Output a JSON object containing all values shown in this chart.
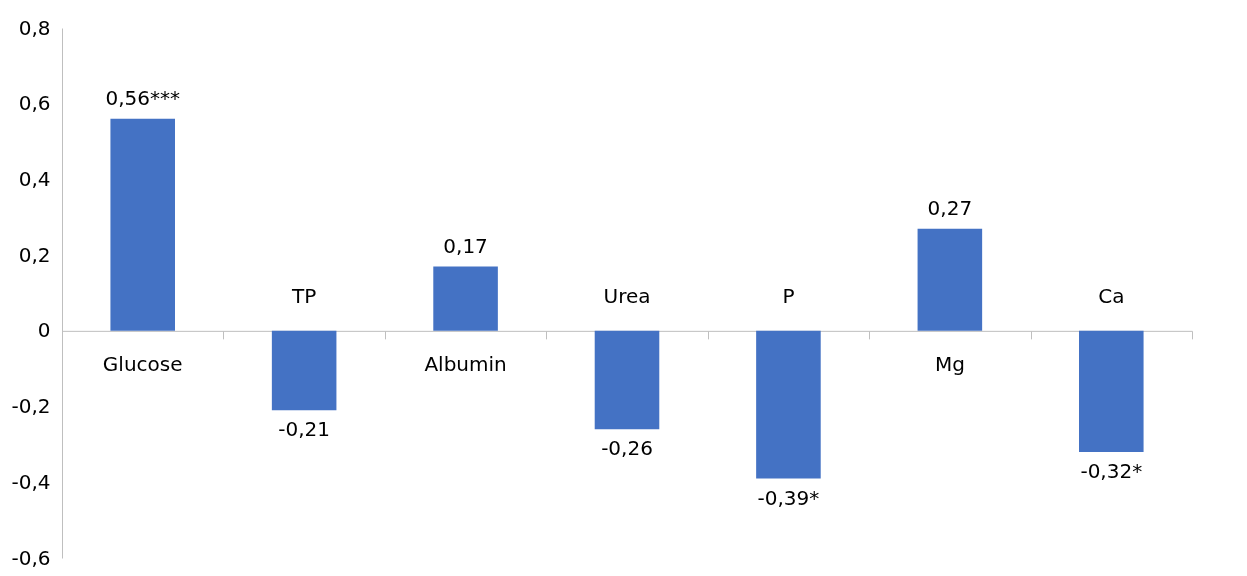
{
  "chart_data": {
    "type": "bar",
    "categories": [
      "Glucose",
      "TP",
      "Albumin",
      "Urea",
      "P",
      "Mg",
      "Ca"
    ],
    "values": [
      0.56,
      -0.21,
      0.17,
      -0.26,
      -0.39,
      0.27,
      -0.32
    ],
    "value_labels": [
      "0,56***",
      "-0,21",
      "0,17",
      "-0,26",
      "-0,39*",
      "0,27",
      "-0,32*"
    ],
    "color": "#4472c4",
    "ylim": [
      -0.6,
      0.8
    ],
    "yticks": [
      {
        "value": -0.6,
        "label": "-0,6"
      },
      {
        "value": -0.4,
        "label": "-0,4"
      },
      {
        "value": -0.2,
        "label": "-0,2"
      },
      0,
      {
        "value": 0.2,
        "label": "0,2"
      },
      {
        "value": 0.4,
        "label": "0,4"
      },
      {
        "value": 0.6,
        "label": "0,6"
      },
      {
        "value": 0.8,
        "label": "0,8"
      }
    ],
    "grid": false
  }
}
